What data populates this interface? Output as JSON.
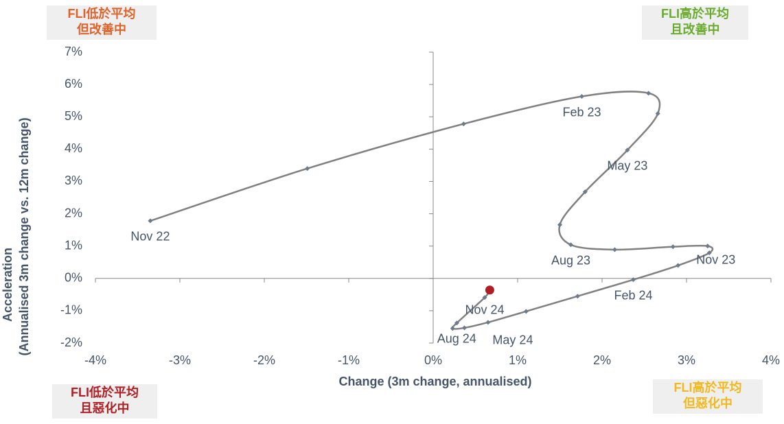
{
  "chart_data": {
    "type": "line",
    "x_label": "Change (3m change, annualised)",
    "y_label": [
      "Acceleration",
      "(Annualised 3m change vs. 12m change)"
    ],
    "xlim": [
      -4,
      4
    ],
    "ylim": [
      -2,
      7
    ],
    "xticks": [
      {
        "value": -4,
        "label": "-4%"
      },
      {
        "value": -3,
        "label": "-3%"
      },
      {
        "value": -2,
        "label": "-2%"
      },
      {
        "value": -1,
        "label": "-1%"
      },
      {
        "value": 0,
        "label": "0%"
      },
      {
        "value": 1,
        "label": "1%"
      },
      {
        "value": 2,
        "label": "2%"
      },
      {
        "value": 3,
        "label": "3%"
      },
      {
        "value": 4,
        "label": "4%"
      }
    ],
    "yticks": [
      {
        "value": -2,
        "label": "-2%"
      },
      {
        "value": -1,
        "label": "-1%"
      },
      {
        "value": 0,
        "label": "0%"
      },
      {
        "value": 1,
        "label": "1%"
      },
      {
        "value": 2,
        "label": "2%"
      },
      {
        "value": 3,
        "label": "3%"
      },
      {
        "value": 4,
        "label": "4%"
      },
      {
        "value": 5,
        "label": "5%"
      },
      {
        "value": 6,
        "label": "6%"
      },
      {
        "value": 7,
        "label": "7%"
      }
    ],
    "series": [
      {
        "color": "#808080",
        "last_point_color": "#b01e23",
        "x": [
          -3.35,
          -1.49,
          0.36,
          1.76,
          2.55,
          2.66,
          2.3,
          1.8,
          1.5,
          1.63,
          2.15,
          2.84,
          3.25,
          3.27,
          2.9,
          2.37,
          1.71,
          1.1,
          0.65,
          0.37,
          0.23,
          0.28,
          0.61,
          0.67
        ],
        "values": [
          1.78,
          3.4,
          4.78,
          5.63,
          5.73,
          5.1,
          3.97,
          2.68,
          1.66,
          1.04,
          0.89,
          0.98,
          1.0,
          0.79,
          0.4,
          -0.04,
          -0.55,
          -1.02,
          -1.36,
          -1.53,
          -1.55,
          -1.38,
          -0.59,
          -0.36
        ],
        "point_labels": [
          "Nov 22",
          null,
          null,
          "Feb 23",
          null,
          null,
          "May 23",
          null,
          null,
          "Aug 23",
          null,
          null,
          "Nov 23",
          null,
          null,
          "Feb 24",
          null,
          null,
          "May 24",
          null,
          "Aug 24",
          null,
          "Nov 24",
          null
        ]
      }
    ],
    "quadrants": [
      {
        "lines": [
          "FLI低於平均",
          "但改善中"
        ],
        "color": "#e0622a"
      },
      {
        "lines": [
          "FLI高於平均",
          "且改善中"
        ],
        "color": "#6aab2e"
      },
      {
        "lines": [
          "FLI低於平均",
          "且惡化中"
        ],
        "color": "#b01e23"
      },
      {
        "lines": [
          "FLI高於平均",
          "但惡化中"
        ],
        "color": "#f2b81c"
      }
    ]
  }
}
